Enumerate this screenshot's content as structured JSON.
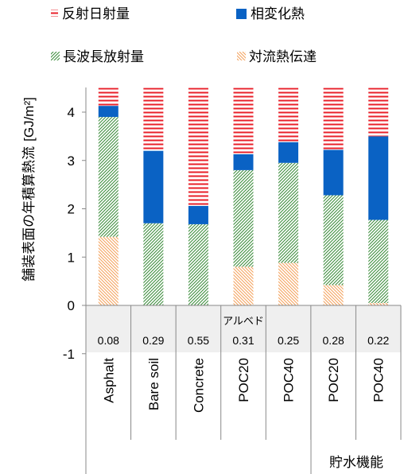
{
  "chart_data": {
    "type": "bar",
    "stacked": true,
    "ylabel": "舗装表面の年積算熱流",
    "ylabel_unit": "[GJ/m²]",
    "ylim": [
      -1,
      4.5
    ],
    "yticks": [
      -1,
      0,
      1,
      2,
      3,
      4
    ],
    "grid": false,
    "legend_position": "top",
    "categories": [
      "Asphalt",
      "Bare soil",
      "Concrete",
      "POC20",
      "POC40",
      "POC20",
      "POC40"
    ],
    "albedo_label": "アルベド",
    "albedo": [
      "0.08",
      "0.29",
      "0.55",
      "0.31",
      "0.25",
      "0.28",
      "0.22"
    ],
    "group_label": "貯水機能",
    "series": [
      {
        "name": "対流熱伝達",
        "pattern": "hatch-backslash",
        "color": "#f4a460",
        "values": [
          1.42,
          0.0,
          0.0,
          0.8,
          0.88,
          0.42,
          0.05
        ]
      },
      {
        "name": "長波長放射量",
        "pattern": "hatch-slash",
        "color": "#3e8e3e",
        "values": [
          2.48,
          1.7,
          1.68,
          2.0,
          2.07,
          1.86,
          1.72
        ]
      },
      {
        "name": "相変化熱",
        "pattern": "solid",
        "color": "#0a62c4",
        "values": [
          0.23,
          1.5,
          0.38,
          0.33,
          0.43,
          0.94,
          1.73
        ]
      },
      {
        "name": "反射日射量",
        "pattern": "hatch-horizontal",
        "color": "#e8202a",
        "values": [
          0.37,
          1.3,
          2.44,
          1.37,
          1.12,
          1.28,
          1.0
        ]
      }
    ]
  }
}
